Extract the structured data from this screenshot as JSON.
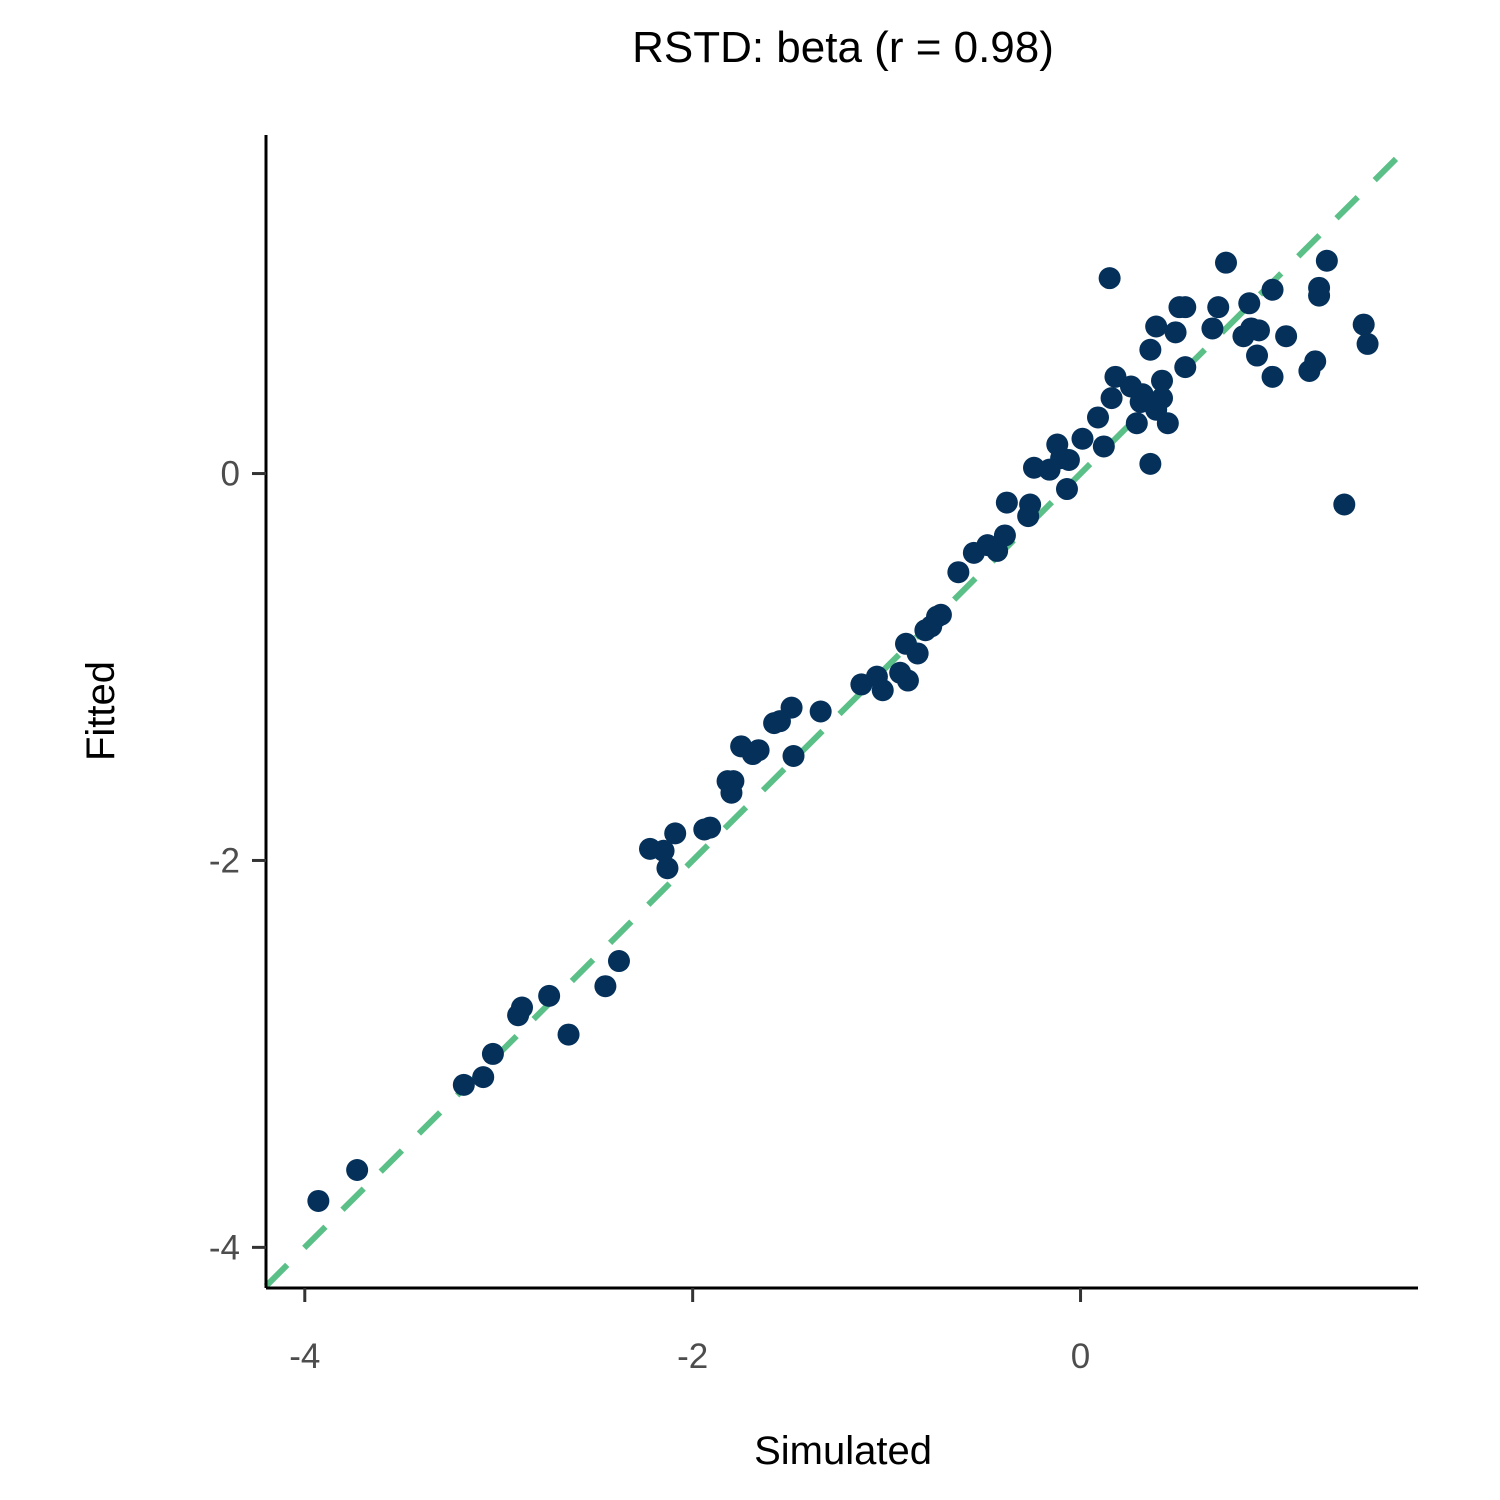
{
  "chart_data": {
    "type": "scatter",
    "title": "RSTD: beta (r = 0.98)",
    "xlabel": "Simulated",
    "ylabel": "Fitted",
    "xlim": [
      -4.2,
      1.74
    ],
    "ylim": [
      -4.21,
      1.75
    ],
    "xticks": [
      -4,
      -2,
      0
    ],
    "yticks": [
      -4,
      -2,
      0
    ],
    "xtick_labels": [
      "-4",
      "-2",
      "0"
    ],
    "ytick_labels": [
      "-4",
      "-2",
      "0"
    ],
    "grid": false,
    "legend": "none",
    "point_color": "#04305a",
    "reference_line": {
      "type": "identity",
      "style": "dashed",
      "color": "#5bc087"
    },
    "points": [
      [
        -3.93,
        -3.76
      ],
      [
        -3.73,
        -3.6
      ],
      [
        -3.18,
        -3.16
      ],
      [
        -3.08,
        -3.12
      ],
      [
        -3.03,
        -3.0
      ],
      [
        -2.9,
        -2.8
      ],
      [
        -2.88,
        -2.76
      ],
      [
        -2.74,
        -2.7
      ],
      [
        -2.64,
        -2.9
      ],
      [
        -2.45,
        -2.65
      ],
      [
        -2.38,
        -2.52
      ],
      [
        -2.22,
        -1.94
      ],
      [
        -2.15,
        -1.95
      ],
      [
        -2.13,
        -2.04
      ],
      [
        -2.09,
        -1.86
      ],
      [
        -1.94,
        -1.84
      ],
      [
        -1.91,
        -1.83
      ],
      [
        -1.82,
        -1.59
      ],
      [
        -1.79,
        -1.59
      ],
      [
        -1.8,
        -1.65
      ],
      [
        -1.75,
        -1.41
      ],
      [
        -1.69,
        -1.45
      ],
      [
        -1.66,
        -1.43
      ],
      [
        -1.58,
        -1.29
      ],
      [
        -1.55,
        -1.28
      ],
      [
        -1.49,
        -1.21
      ],
      [
        -1.48,
        -1.46
      ],
      [
        -1.34,
        -1.23
      ],
      [
        -1.13,
        -1.09
      ],
      [
        -1.05,
        -1.05
      ],
      [
        -1.02,
        -1.12
      ],
      [
        -0.93,
        -1.03
      ],
      [
        -0.89,
        -1.07
      ],
      [
        -0.9,
        -0.88
      ],
      [
        -0.84,
        -0.93
      ],
      [
        -0.8,
        -0.81
      ],
      [
        -0.77,
        -0.79
      ],
      [
        -0.74,
        -0.74
      ],
      [
        -0.72,
        -0.73
      ],
      [
        -0.63,
        -0.51
      ],
      [
        -0.55,
        -0.41
      ],
      [
        -0.48,
        -0.37
      ],
      [
        -0.43,
        -0.4
      ],
      [
        -0.39,
        -0.32
      ],
      [
        -0.38,
        -0.15
      ],
      [
        -0.26,
        -0.16
      ],
      [
        -0.27,
        -0.22
      ],
      [
        -0.24,
        0.03
      ],
      [
        -0.16,
        0.02
      ],
      [
        -0.12,
        0.15
      ],
      [
        -0.1,
        0.08
      ],
      [
        -0.06,
        0.07
      ],
      [
        -0.07,
        -0.08
      ],
      [
        0.01,
        0.18
      ],
      [
        0.09,
        0.29
      ],
      [
        0.12,
        0.14
      ],
      [
        0.15,
        1.01
      ],
      [
        0.16,
        0.39
      ],
      [
        0.18,
        0.5
      ],
      [
        0.26,
        0.45
      ],
      [
        0.29,
        0.26
      ],
      [
        0.31,
        0.37
      ],
      [
        0.32,
        0.41
      ],
      [
        0.36,
        0.05
      ],
      [
        0.36,
        0.64
      ],
      [
        0.39,
        0.33
      ],
      [
        0.42,
        0.48
      ],
      [
        0.42,
        0.39
      ],
      [
        0.39,
        0.76
      ],
      [
        0.45,
        0.26
      ],
      [
        0.49,
        0.73
      ],
      [
        0.51,
        0.86
      ],
      [
        0.54,
        0.86
      ],
      [
        0.54,
        0.55
      ],
      [
        0.68,
        0.75
      ],
      [
        0.71,
        0.86
      ],
      [
        0.75,
        1.09
      ],
      [
        0.84,
        0.71
      ],
      [
        0.87,
        0.88
      ],
      [
        0.88,
        0.75
      ],
      [
        0.92,
        0.74
      ],
      [
        0.91,
        0.61
      ],
      [
        0.99,
        0.95
      ],
      [
        0.99,
        0.5
      ],
      [
        1.06,
        0.71
      ],
      [
        1.18,
        0.53
      ],
      [
        1.21,
        0.58
      ],
      [
        1.23,
        0.96
      ],
      [
        1.23,
        0.92
      ],
      [
        1.27,
        1.1
      ],
      [
        1.36,
        -0.16
      ],
      [
        1.46,
        0.77
      ],
      [
        1.48,
        0.67
      ]
    ]
  }
}
